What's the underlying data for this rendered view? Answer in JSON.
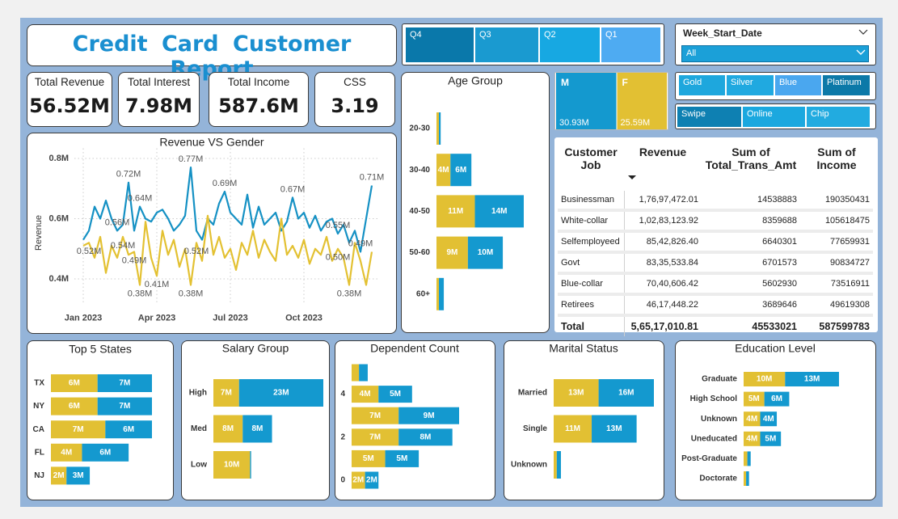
{
  "header": {
    "title": "Credit Card Customer Report"
  },
  "slicers": {
    "quarter": [
      "Q4",
      "Q3",
      "Q2",
      "Q1"
    ],
    "week": {
      "label": "Week_Start_Date",
      "value": "All"
    },
    "card_category": [
      "Gold",
      "Silver",
      "Blue",
      "Platinum"
    ],
    "use_chip": [
      "Swipe",
      "Online",
      "Chip"
    ]
  },
  "cards": [
    {
      "label": "Total Revenue",
      "value": "56.52M"
    },
    {
      "label": "Total Interest",
      "value": "7.98M"
    },
    {
      "label": "Total Income",
      "value": "587.6M"
    },
    {
      "label": "CSS",
      "value": "3.19"
    }
  ],
  "table": {
    "columns": [
      "Customer Job",
      "Revenue",
      "Sum of Total_Trans_Amt",
      "Sum of Income"
    ],
    "rows": [
      [
        "Businessman",
        "1,76,97,472.01",
        "14538883",
        "190350431"
      ],
      [
        "White-collar",
        "1,02,83,123.92",
        "8359688",
        "105618475"
      ],
      [
        "Selfemployeed",
        "85,42,826.40",
        "6640301",
        "77659931"
      ],
      [
        "Govt",
        "83,35,533.84",
        "6701573",
        "90834727"
      ],
      [
        "Blue-collar",
        "70,40,606.42",
        "5602930",
        "73516911"
      ],
      [
        "Retirees",
        "46,17,448.22",
        "3689646",
        "49619308"
      ]
    ],
    "total": [
      "Total",
      "5,65,17,010.81",
      "45533021",
      "587599783"
    ]
  },
  "chart_data": [
    {
      "type": "line",
      "title": "Revenue VS Gender",
      "y_label": "Revenue",
      "categories": [
        "Jan 2023",
        null,
        null,
        null,
        null,
        null,
        null,
        null,
        null,
        null,
        null,
        null,
        null,
        "Apr 2023",
        null,
        null,
        null,
        null,
        null,
        null,
        null,
        null,
        null,
        null,
        null,
        null,
        "Jul 2023",
        null,
        null,
        null,
        null,
        null,
        null,
        null,
        null,
        null,
        null,
        null,
        null,
        "Oct 2023",
        null,
        null,
        null,
        null,
        null,
        null,
        null,
        null,
        null,
        null,
        null,
        null
      ],
      "ylim": [
        340000,
        820000
      ],
      "yticks": [
        {
          "value": 400000,
          "label": "0.4M"
        },
        {
          "value": 600000,
          "label": "0.6M"
        },
        {
          "value": 800000,
          "label": "0.8M"
        }
      ],
      "grid": true,
      "series": [
        {
          "color": "#1591c4",
          "values": [
            530000,
            560000,
            640000,
            600000,
            660000,
            600000,
            560000,
            580000,
            720000,
            560000,
            640000,
            600000,
            590000,
            620000,
            630000,
            600000,
            560000,
            580000,
            610000,
            770000,
            560000,
            530000,
            600000,
            580000,
            650000,
            690000,
            620000,
            600000,
            580000,
            680000,
            570000,
            640000,
            580000,
            600000,
            620000,
            560000,
            590000,
            670000,
            600000,
            620000,
            570000,
            610000,
            560000,
            590000,
            600000,
            550000,
            580000,
            520000,
            560000,
            490000,
            600000,
            710000
          ],
          "value_labels": [
            null,
            null,
            null,
            null,
            null,
            null,
            "0.56M",
            null,
            "0.72M",
            null,
            "0.64M",
            null,
            null,
            null,
            null,
            null,
            null,
            null,
            null,
            "0.77M",
            null,
            null,
            null,
            null,
            null,
            "0.69M",
            null,
            null,
            null,
            null,
            null,
            null,
            null,
            null,
            null,
            null,
            null,
            "0.67M",
            null,
            null,
            null,
            null,
            null,
            null,
            null,
            "0.55M",
            null,
            null,
            null,
            "0.49M",
            null,
            "0.71M"
          ]
        },
        {
          "color": "#e3c132",
          "values": [
            510000,
            520000,
            470000,
            540000,
            420000,
            510000,
            470000,
            540000,
            480000,
            490000,
            380000,
            590000,
            470000,
            410000,
            560000,
            480000,
            530000,
            440000,
            500000,
            380000,
            520000,
            460000,
            610000,
            480000,
            540000,
            470000,
            500000,
            430000,
            520000,
            480000,
            560000,
            470000,
            530000,
            490000,
            460000,
            600000,
            480000,
            510000,
            470000,
            530000,
            450000,
            500000,
            480000,
            540000,
            460000,
            500000,
            470000,
            380000,
            520000,
            460000,
            380000,
            490000
          ],
          "value_labels": [
            null,
            "0.52M",
            null,
            null,
            null,
            null,
            null,
            "0.54M",
            null,
            "0.49M",
            "0.38M",
            null,
            null,
            "0.41M",
            null,
            null,
            null,
            null,
            null,
            "0.38M",
            "0.52M",
            null,
            null,
            null,
            null,
            null,
            null,
            null,
            null,
            null,
            null,
            null,
            null,
            null,
            null,
            null,
            null,
            null,
            null,
            null,
            null,
            null,
            null,
            null,
            null,
            "0.50M",
            null,
            "0.38M",
            null,
            null,
            null,
            null
          ]
        }
      ]
    },
    {
      "type": "treemap",
      "categories": [
        "M",
        "F"
      ],
      "values": [
        30.93,
        25.59
      ],
      "value_labels": [
        "30.93M",
        "25.59M"
      ],
      "colors": [
        "#1499cf",
        "#e2c033"
      ]
    },
    {
      "type": "bar",
      "orientation": "horizontal",
      "stacked": true,
      "title": "Age Group",
      "categories": [
        "20-30",
        "30-40",
        "40-50",
        "50-60",
        "60+"
      ],
      "series": [
        {
          "color": "#e2c033",
          "values": [
            0.7,
            4,
            11,
            9,
            0.7
          ],
          "value_labels": [
            null,
            "4M",
            "11M",
            "9M",
            null
          ]
        },
        {
          "color": "#1499cf",
          "values": [
            0.5,
            6,
            14,
            10,
            1.4
          ],
          "value_labels": [
            null,
            "6M",
            "14M",
            "10M",
            null
          ]
        }
      ]
    },
    {
      "type": "bar",
      "orientation": "horizontal",
      "stacked": true,
      "title": "Top 5 States",
      "categories": [
        "TX",
        "NY",
        "CA",
        "FL",
        "NJ"
      ],
      "series": [
        {
          "color": "#e2c033",
          "values": [
            6,
            6,
            7,
            4,
            2
          ],
          "value_labels": [
            "6M",
            "6M",
            "7M",
            "4M",
            "2M"
          ]
        },
        {
          "color": "#1499cf",
          "values": [
            7,
            7,
            6,
            6,
            3
          ],
          "value_labels": [
            "7M",
            "7M",
            "6M",
            "6M",
            "3M"
          ]
        }
      ]
    },
    {
      "type": "bar",
      "orientation": "horizontal",
      "stacked": true,
      "title": "Salary Group",
      "categories": [
        "High",
        "Med",
        "Low"
      ],
      "series": [
        {
          "color": "#e2c033",
          "values": [
            7,
            8,
            10
          ],
          "value_labels": [
            "7M",
            "8M",
            "10M"
          ]
        },
        {
          "color": "#1499cf",
          "values": [
            23,
            8,
            0.3
          ],
          "value_labels": [
            "23M",
            "8M",
            null
          ]
        }
      ]
    },
    {
      "type": "bar",
      "orientation": "horizontal",
      "stacked": true,
      "title": "Dependent Count",
      "categories": [
        null,
        "4",
        null,
        "2",
        null,
        "0"
      ],
      "series": [
        {
          "color": "#e2c033",
          "values": [
            1.1,
            4,
            7,
            7,
            5,
            2
          ],
          "value_labels": [
            null,
            "4M",
            "7M",
            "7M",
            "5M",
            "2M"
          ]
        },
        {
          "color": "#1499cf",
          "values": [
            1.3,
            5,
            9,
            8,
            5,
            2
          ],
          "value_labels": [
            null,
            "5M",
            "9M",
            "8M",
            "5M",
            "2M"
          ]
        }
      ]
    },
    {
      "type": "bar",
      "orientation": "horizontal",
      "stacked": true,
      "title": "Marital Status",
      "categories": [
        "Married",
        "Single",
        "Unknown"
      ],
      "series": [
        {
          "color": "#e2c033",
          "values": [
            13,
            11,
            0.9
          ],
          "value_labels": [
            "13M",
            "11M",
            null
          ]
        },
        {
          "color": "#1499cf",
          "values": [
            16,
            13,
            1.2
          ],
          "value_labels": [
            "16M",
            "13M",
            null
          ]
        }
      ]
    },
    {
      "type": "bar",
      "orientation": "horizontal",
      "stacked": true,
      "title": "Education Level",
      "categories": [
        "Graduate",
        "High School",
        "Unknown",
        "Uneducated",
        "Post-Graduate",
        "Doctorate"
      ],
      "series": [
        {
          "color": "#e2c033",
          "values": [
            10,
            5,
            4,
            4,
            0.9,
            0.6
          ],
          "value_labels": [
            "10M",
            "5M",
            "4M",
            "4M",
            null,
            null
          ]
        },
        {
          "color": "#1499cf",
          "values": [
            13,
            6,
            4,
            5,
            0.8,
            0.7
          ],
          "value_labels": [
            "13M",
            "6M",
            "4M",
            "5M",
            null,
            null
          ]
        }
      ]
    }
  ]
}
